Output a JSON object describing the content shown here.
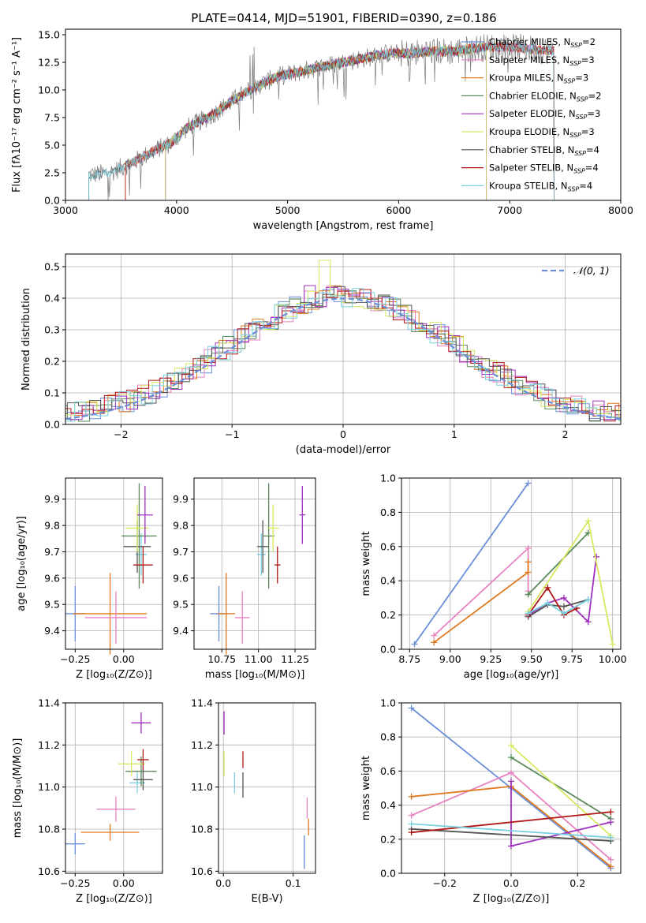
{
  "figure_title": "PLATE=0414, MJD=51901, FIBERID=0390, z=0.186",
  "colors": {
    "chabrier_miles": "#6a8fd8",
    "salpeter_miles": "#e882c0",
    "kroupa_miles": "#e07a20",
    "chabrier_elodie": "#5a8a5a",
    "salpeter_elodie": "#a030c0",
    "kroupa_elodie": "#d8e860",
    "chabrier_stelib": "#555555",
    "salpeter_stelib": "#b01818",
    "kroupa_stelib": "#7ad0e0",
    "normal_curve": "#6a8fd8"
  },
  "chart_data": [
    {
      "id": "spectrum",
      "type": "line",
      "xlabel": "wavelength [Angstrom, rest frame]",
      "ylabel": "Flux [fλ10⁻¹⁷ erg cm⁻² s⁻¹ A⁻¹]",
      "xlim": [
        3000,
        8000
      ],
      "ylim": [
        0,
        15.5
      ],
      "xticks": [
        "3000",
        "4000",
        "5000",
        "6000",
        "7000",
        "8000"
      ],
      "yticks": [
        "0.0",
        "2.5",
        "5.0",
        "7.5",
        "10.0",
        "12.5",
        "15.0"
      ],
      "grid": false,
      "legend_placement": "top-right",
      "data_continuum": {
        "x": [
          3210,
          3400,
          3600,
          3800,
          3950,
          4100,
          4300,
          4500,
          4700,
          4900,
          5100,
          5300,
          5500,
          5700,
          5900,
          6100,
          6300,
          6500,
          6700,
          6900,
          7100,
          7300,
          7400
        ],
        "y": [
          2.3,
          2.5,
          3.4,
          4.5,
          5.2,
          6.6,
          7.6,
          9.0,
          10.2,
          11.2,
          11.6,
          12.1,
          12.5,
          12.9,
          13.3,
          13.3,
          13.5,
          13.5,
          13.8,
          13.9,
          13.8,
          13.6,
          13.6
        ]
      },
      "series": [
        {
          "name": "Chabrier MILES, N_SSP=2",
          "label": "Chabrier MILES, N",
          "sub": "SSP",
          "suffix": "=2",
          "color_key": "chabrier_miles",
          "x_start": 3540,
          "x_end": 7400
        },
        {
          "name": "Salpeter MILES, N_SSP=3",
          "label": "Salpeter MILES, N",
          "sub": "SSP",
          "suffix": "=3",
          "color_key": "salpeter_miles",
          "x_start": 3540,
          "x_end": 7400
        },
        {
          "name": "Kroupa MILES, N_SSP=3",
          "label": "Kroupa MILES, N",
          "sub": "SSP",
          "suffix": "=3",
          "color_key": "kroupa_miles",
          "x_start": 3540,
          "x_end": 7400
        },
        {
          "name": "Chabrier ELODIE, N_SSP=2",
          "label": "Chabrier ELODIE, N",
          "sub": "SSP",
          "suffix": "=2",
          "color_key": "chabrier_elodie",
          "x_start": 3900,
          "x_end": 6790
        },
        {
          "name": "Salpeter ELODIE, N_SSP=3",
          "label": "Salpeter ELODIE, N",
          "sub": "SSP",
          "suffix": "=3",
          "color_key": "salpeter_elodie",
          "x_start": 3900,
          "x_end": 6790
        },
        {
          "name": "Kroupa ELODIE, N_SSP=3",
          "label": "Kroupa ELODIE, N",
          "sub": "SSP",
          "suffix": "=3",
          "color_key": "kroupa_elodie",
          "x_start": 3900,
          "x_end": 6790
        },
        {
          "name": "Chabrier STELIB, N_SSP=4",
          "label": "Chabrier STELIB, N",
          "sub": "SSP",
          "suffix": "=4",
          "color_key": "chabrier_stelib",
          "x_start": 3210,
          "x_end": 7400
        },
        {
          "name": "Salpeter STELIB, N_SSP=4",
          "label": "Salpeter STELIB, N",
          "sub": "SSP",
          "suffix": "=4",
          "color_key": "salpeter_stelib",
          "x_start": 3540,
          "x_end": 7400
        },
        {
          "name": "Kroupa STELIB, N_SSP=4",
          "label": "Kroupa STELIB, N",
          "sub": "SSP",
          "suffix": "=4",
          "color_key": "kroupa_stelib",
          "x_start": 3210,
          "x_end": 7400
        }
      ]
    },
    {
      "id": "residuals",
      "type": "histogram",
      "xlabel": "(data-model)/error",
      "ylabel": "Normed distribution",
      "xlim": [
        -2.5,
        2.5
      ],
      "ylim": [
        0,
        0.54
      ],
      "xticks": [
        "−2",
        "−1",
        "0",
        "1",
        "2"
      ],
      "xtick_values": [
        -2,
        -1,
        0,
        1,
        2
      ],
      "yticks": [
        "0.0",
        "0.1",
        "0.2",
        "0.3",
        "0.4",
        "0.5"
      ],
      "ytick_values": [
        0,
        0.1,
        0.2,
        0.3,
        0.4,
        0.5
      ],
      "grid": true,
      "legend_placement": "top-right",
      "legend_label": "𝒩(0, 1)",
      "bin_width": 0.1,
      "peak_bins": {
        "kroupa_elodie": [
          -0.2,
          0.52
        ],
        "salpeter_elodie": [
          -0.3,
          0.44
        ]
      }
    },
    {
      "id": "z_vs_age",
      "type": "scatter",
      "xlabel": "Z [log₁₀(Z/Z⊙)]",
      "ylabel": "age  [log₁₀(age/yr)]",
      "xlim": [
        -0.3,
        0.2
      ],
      "ylim": [
        9.33,
        9.98
      ],
      "xticks": [
        "−0.25",
        "0.00"
      ],
      "xtick_values": [
        -0.25,
        0.0
      ],
      "yticks": [
        "9.4",
        "9.5",
        "9.6",
        "9.7",
        "9.8",
        "9.9"
      ],
      "ytick_values": [
        9.4,
        9.5,
        9.6,
        9.7,
        9.8,
        9.9
      ],
      "grid": true,
      "points": [
        {
          "color_key": "chabrier_miles",
          "x": -0.25,
          "y": 9.465,
          "xerr": 0.05,
          "yerr": 0.105
        },
        {
          "color_key": "kroupa_miles",
          "x": -0.07,
          "y": 9.465,
          "xerr": 0.19,
          "yerr": 0.155
        },
        {
          "color_key": "salpeter_miles",
          "x": -0.04,
          "y": 9.45,
          "xerr": 0.16,
          "yerr": 0.1
        },
        {
          "color_key": "kroupa_stelib",
          "x": 0.09,
          "y": 9.69,
          "xerr": 0.03,
          "yerr": 0.08
        },
        {
          "color_key": "chabrier_elodie",
          "x": 0.08,
          "y": 9.76,
          "xerr": 0.09,
          "yerr": 0.2
        },
        {
          "color_key": "chabrier_stelib",
          "x": 0.07,
          "y": 9.72,
          "xerr": 0.07,
          "yerr": 0.1
        },
        {
          "color_key": "kroupa_elodie",
          "x": 0.07,
          "y": 9.79,
          "xerr": 0.06,
          "yerr": 0.09
        },
        {
          "color_key": "salpeter_elodie",
          "x": 0.11,
          "y": 9.84,
          "xerr": 0.04,
          "yerr": 0.11
        },
        {
          "color_key": "salpeter_stelib",
          "x": 0.1,
          "y": 9.65,
          "xerr": 0.05,
          "yerr": 0.07
        }
      ]
    },
    {
      "id": "mass_vs_age",
      "type": "scatter",
      "xlabel": "mass [log₁₀(M/M⊙)]",
      "ylabel": "",
      "xlim": [
        10.56,
        11.39
      ],
      "ylim": [
        9.33,
        9.98
      ],
      "xticks": [
        "10.75",
        "11.00",
        "11.25"
      ],
      "xtick_values": [
        10.75,
        11.0,
        11.25
      ],
      "yticks": [
        "9.4",
        "9.5",
        "9.6",
        "9.7",
        "9.8",
        "9.9"
      ],
      "ytick_values": [
        9.4,
        9.5,
        9.6,
        9.7,
        9.8,
        9.9
      ],
      "grid": true,
      "points": [
        {
          "color_key": "chabrier_miles",
          "x": 10.73,
          "y": 9.465,
          "xerr": 0.06,
          "yerr": 0.105
        },
        {
          "color_key": "kroupa_miles",
          "x": 10.78,
          "y": 9.465,
          "xerr": 0.06,
          "yerr": 0.155
        },
        {
          "color_key": "salpeter_miles",
          "x": 10.89,
          "y": 9.45,
          "xerr": 0.05,
          "yerr": 0.1
        },
        {
          "color_key": "kroupa_stelib",
          "x": 11.02,
          "y": 9.69,
          "xerr": 0.03,
          "yerr": 0.08
        },
        {
          "color_key": "chabrier_elodie",
          "x": 11.07,
          "y": 9.76,
          "xerr": 0.04,
          "yerr": 0.2
        },
        {
          "color_key": "chabrier_stelib",
          "x": 11.03,
          "y": 9.72,
          "xerr": 0.04,
          "yerr": 0.1
        },
        {
          "color_key": "kroupa_elodie",
          "x": 11.1,
          "y": 9.79,
          "xerr": 0.04,
          "yerr": 0.09
        },
        {
          "color_key": "salpeter_elodie",
          "x": 11.3,
          "y": 9.84,
          "xerr": 0.02,
          "yerr": 0.11
        },
        {
          "color_key": "salpeter_stelib",
          "x": 11.13,
          "y": 9.65,
          "xerr": 0.02,
          "yerr": 0.07
        }
      ]
    },
    {
      "id": "age_weights",
      "type": "line",
      "xlabel": "age  [log₁₀(age/yr)]",
      "ylabel": "mass weight",
      "xlim": [
        8.7,
        10.05
      ],
      "ylim": [
        0,
        1
      ],
      "xticks": [
        "8.75",
        "9.00",
        "9.25",
        "9.50",
        "9.75",
        "10.00"
      ],
      "xtick_values": [
        8.75,
        9.0,
        9.25,
        9.5,
        9.75,
        10.0
      ],
      "yticks": [
        "0.0",
        "0.2",
        "0.4",
        "0.6",
        "0.8",
        "1.0"
      ],
      "ytick_values": [
        0,
        0.2,
        0.4,
        0.6,
        0.8,
        1.0
      ],
      "grid": true,
      "series": [
        {
          "color_key": "chabrier_miles",
          "x": [
            8.78,
            9.48
          ],
          "y": [
            0.03,
            0.97
          ]
        },
        {
          "color_key": "salpeter_miles",
          "x": [
            8.9,
            9.48,
            9.48
          ],
          "y": [
            0.08,
            0.59,
            0.34
          ]
        },
        {
          "color_key": "kroupa_miles",
          "x": [
            8.9,
            9.48,
            9.48
          ],
          "y": [
            0.04,
            0.45,
            0.51
          ]
        },
        {
          "color_key": "chabrier_elodie",
          "x": [
            9.48,
            9.85,
            9.48
          ],
          "y": [
            0.32,
            0.68,
            0.32
          ]
        },
        {
          "color_key": "salpeter_elodie",
          "x": [
            9.48,
            9.6,
            9.7,
            9.85,
            9.9
          ],
          "y": [
            0.2,
            0.27,
            0.3,
            0.16,
            0.54
          ]
        },
        {
          "color_key": "kroupa_elodie",
          "x": [
            9.48,
            9.85,
            10.0
          ],
          "y": [
            0.22,
            0.75,
            0.03
          ]
        },
        {
          "color_key": "chabrier_stelib",
          "x": [
            9.48,
            9.6,
            9.7,
            9.85
          ],
          "y": [
            0.19,
            0.26,
            0.25,
            0.29
          ]
        },
        {
          "color_key": "salpeter_stelib",
          "x": [
            9.48,
            9.6,
            9.7,
            9.78
          ],
          "y": [
            0.2,
            0.36,
            0.2,
            0.24
          ]
        },
        {
          "color_key": "kroupa_stelib",
          "x": [
            9.48,
            9.6,
            9.7,
            9.85
          ],
          "y": [
            0.21,
            0.27,
            0.21,
            0.29
          ]
        }
      ]
    },
    {
      "id": "z_vs_mass",
      "type": "scatter",
      "xlabel": "Z [log₁₀(Z/Z⊙)]",
      "ylabel": "mass [log₁₀(M/M⊙)]",
      "xlim": [
        -0.3,
        0.2
      ],
      "ylim": [
        10.59,
        11.4
      ],
      "xticks": [
        "−0.25",
        "0.00"
      ],
      "xtick_values": [
        -0.25,
        0.0
      ],
      "yticks": [
        "10.6",
        "10.8",
        "11.0",
        "11.2",
        "11.4"
      ],
      "ytick_values": [
        10.6,
        10.8,
        11.0,
        11.2,
        11.4
      ],
      "grid": true,
      "points": [
        {
          "color_key": "chabrier_miles",
          "x": -0.25,
          "y": 10.73,
          "xerr": 0.05,
          "yerr": 0.05
        },
        {
          "color_key": "kroupa_miles",
          "x": -0.07,
          "y": 10.785,
          "xerr": 0.15,
          "yerr": 0.04
        },
        {
          "color_key": "salpeter_miles",
          "x": -0.04,
          "y": 10.895,
          "xerr": 0.1,
          "yerr": 0.06
        },
        {
          "color_key": "kroupa_stelib",
          "x": 0.07,
          "y": 11.02,
          "xerr": 0.04,
          "yerr": 0.05
        },
        {
          "color_key": "chabrier_elodie",
          "x": 0.09,
          "y": 11.075,
          "xerr": 0.08,
          "yerr": 0.07
        },
        {
          "color_key": "chabrier_stelib",
          "x": 0.1,
          "y": 11.035,
          "xerr": 0.05,
          "yerr": 0.05
        },
        {
          "color_key": "kroupa_elodie",
          "x": 0.04,
          "y": 11.11,
          "xerr": 0.07,
          "yerr": 0.06
        },
        {
          "color_key": "salpeter_elodie",
          "x": 0.09,
          "y": 11.305,
          "xerr": 0.05,
          "yerr": 0.05
        },
        {
          "color_key": "salpeter_stelib",
          "x": 0.1,
          "y": 11.13,
          "xerr": 0.03,
          "yerr": 0.05
        }
      ]
    },
    {
      "id": "ebv_vs_mass",
      "type": "scatter",
      "xlabel": "E(B-V)",
      "ylabel": "",
      "xlim": [
        -0.007,
        0.132
      ],
      "ylim": [
        10.59,
        11.4
      ],
      "xticks": [
        "0.0",
        "0.1"
      ],
      "xtick_values": [
        0.0,
        0.1
      ],
      "yticks": [
        "10.6",
        "10.8",
        "11.0",
        "11.2",
        "11.4"
      ],
      "ytick_values": [
        10.6,
        10.8,
        11.0,
        11.2,
        11.4
      ],
      "grid": true,
      "points": [
        {
          "color_key": "salpeter_elodie",
          "x": 0.001,
          "y": 11.305,
          "xerr": 0,
          "yerr": 0.055
        },
        {
          "color_key": "kroupa_elodie",
          "x": 0.001,
          "y": 11.11,
          "xerr": 0,
          "yerr": 0.06
        },
        {
          "color_key": "kroupa_stelib",
          "x": 0.016,
          "y": 11.02,
          "xerr": 0,
          "yerr": 0.05
        },
        {
          "color_key": "chabrier_stelib",
          "x": 0.028,
          "y": 11.01,
          "xerr": 0,
          "yerr": 0.06
        },
        {
          "color_key": "salpeter_stelib",
          "x": 0.028,
          "y": 11.13,
          "xerr": 0,
          "yerr": 0.04
        },
        {
          "color_key": "salpeter_miles",
          "x": 0.12,
          "y": 10.9,
          "xerr": 0,
          "yerr": 0.05
        },
        {
          "color_key": "kroupa_miles",
          "x": 0.122,
          "y": 10.81,
          "xerr": 0,
          "yerr": 0.04
        },
        {
          "color_key": "chabrier_miles",
          "x": 0.116,
          "y": 10.69,
          "xerr": 0,
          "yerr": 0.08
        }
      ]
    },
    {
      "id": "z_weights",
      "type": "line",
      "xlabel": "Z [log₁₀(Z/Z⊙)]",
      "ylabel": "mass weight",
      "xlim": [
        -0.33,
        0.33
      ],
      "ylim": [
        0,
        1
      ],
      "xticks": [
        "−0.2",
        "0.0",
        "0.2"
      ],
      "xtick_values": [
        -0.2,
        0.0,
        0.2
      ],
      "yticks": [
        "0.0",
        "0.2",
        "0.4",
        "0.6",
        "0.8",
        "1.0"
      ],
      "ytick_values": [
        0,
        0.2,
        0.4,
        0.6,
        0.8,
        1.0
      ],
      "grid": true,
      "series": [
        {
          "color_key": "chabrier_miles",
          "x": [
            -0.3,
            0.0,
            0.3
          ],
          "y": [
            0.97,
            0.5,
            0.03
          ]
        },
        {
          "color_key": "salpeter_miles",
          "x": [
            -0.3,
            0.0,
            0.3
          ],
          "y": [
            0.34,
            0.59,
            0.08
          ]
        },
        {
          "color_key": "kroupa_miles",
          "x": [
            -0.3,
            0.0,
            0.3
          ],
          "y": [
            0.45,
            0.51,
            0.04
          ]
        },
        {
          "color_key": "chabrier_elodie",
          "x": [
            0.0,
            0.3
          ],
          "y": [
            0.68,
            0.32
          ]
        },
        {
          "color_key": "salpeter_elodie",
          "x": [
            0.0,
            0.0,
            0.3
          ],
          "y": [
            0.54,
            0.16,
            0.3
          ]
        },
        {
          "color_key": "kroupa_elodie",
          "x": [
            0.0,
            0.3
          ],
          "y": [
            0.75,
            0.22
          ]
        },
        {
          "color_key": "chabrier_stelib",
          "x": [
            -0.3,
            0.3
          ],
          "y": [
            0.26,
            0.19
          ]
        },
        {
          "color_key": "salpeter_stelib",
          "x": [
            -0.3,
            0.3
          ],
          "y": [
            0.24,
            0.36
          ]
        },
        {
          "color_key": "kroupa_stelib",
          "x": [
            -0.3,
            0.3
          ],
          "y": [
            0.29,
            0.21
          ]
        }
      ]
    }
  ]
}
